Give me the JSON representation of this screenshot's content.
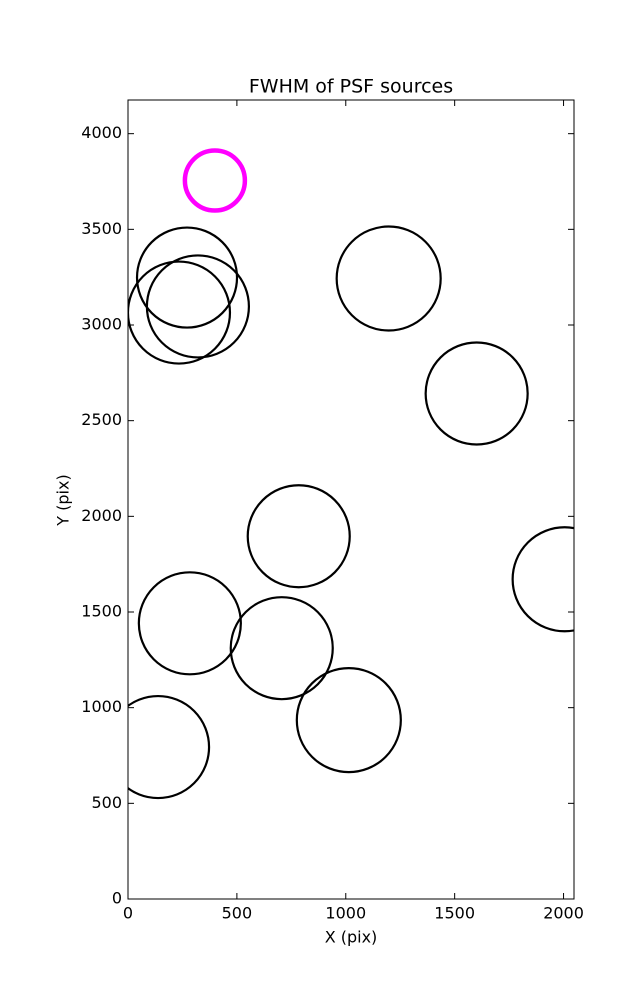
{
  "chart_data": {
    "type": "scatter",
    "title": "FWHM of PSF sources",
    "x_label": "X (pix)",
    "y_label": "Y (pix)",
    "x": [
      399,
      271,
      321,
      234,
      1197,
      1601,
      784,
      2005,
      284,
      706,
      1014,
      138
    ],
    "y": [
      3755,
      3248,
      3097,
      3065,
      3243,
      2642,
      1896,
      1671,
      1441,
      1311,
      935,
      794
    ],
    "sizes": [
      30,
      50,
      51,
      51,
      52,
      51,
      51,
      52,
      51,
      51,
      52,
      51
    ],
    "colors": [
      "#ff00ff",
      "#000000",
      "#000000",
      "#000000",
      "#000000",
      "#000000",
      "#000000",
      "#000000",
      "#000000",
      "#000000",
      "#000000",
      "#000000"
    ],
    "xlim": [
      0,
      2048
    ],
    "ylim": [
      0,
      4176
    ],
    "xticks": [
      0,
      500,
      1000,
      1500,
      2000
    ],
    "yticks": [
      0,
      500,
      1000,
      1500,
      2000,
      2500,
      3000,
      3500,
      4000
    ]
  }
}
